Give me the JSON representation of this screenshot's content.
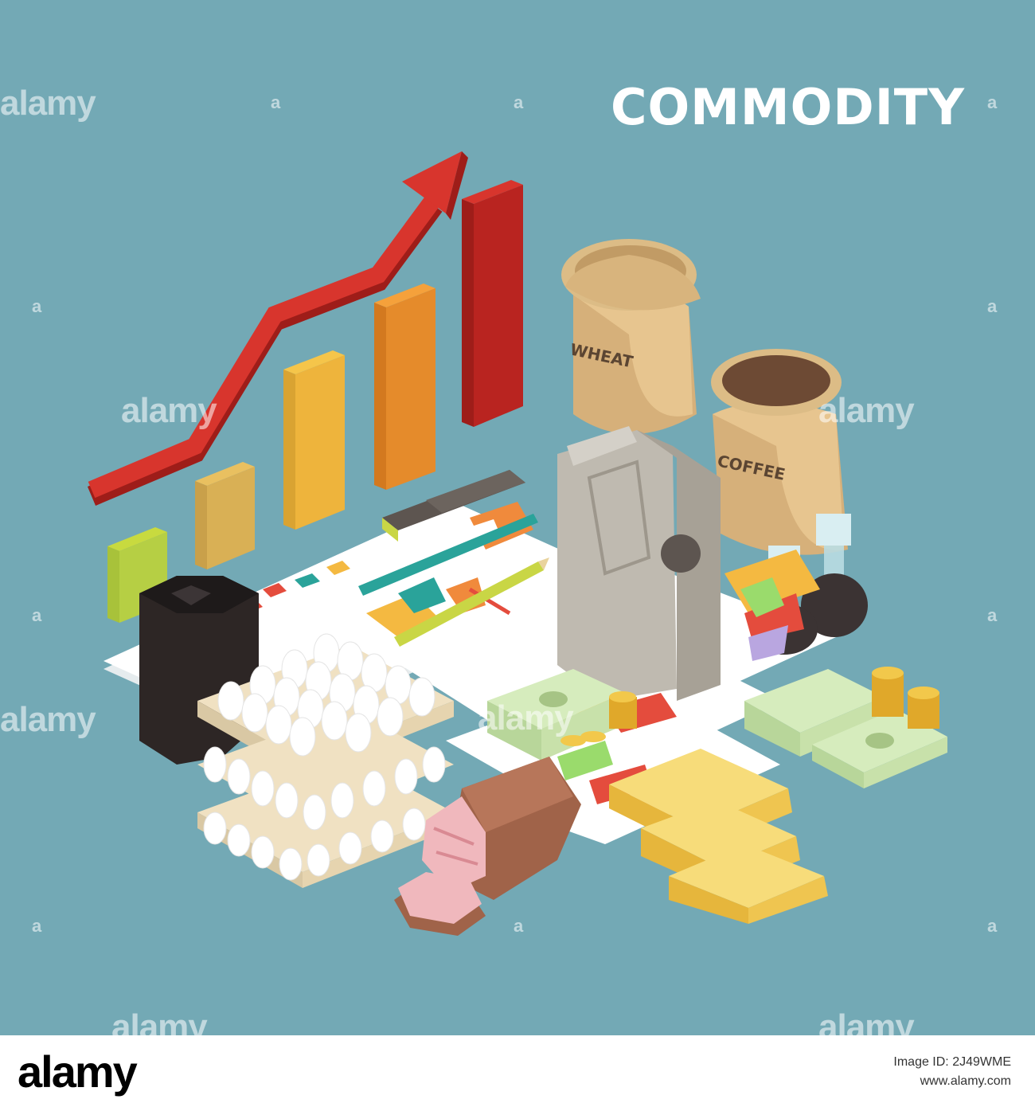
{
  "title": "COMMODITY",
  "labels": {
    "wheat": "WHEAT",
    "coffee": "COFFEE"
  },
  "watermark": {
    "text": "alamy",
    "mark": "a"
  },
  "footer": {
    "logo": "alamy",
    "image_id_label": "Image ID: 2J49WME",
    "site": "www.alamy.com"
  },
  "icons": [
    "bar-chart-icon",
    "growth-arrow-icon",
    "wheat-sack-icon",
    "coffee-sack-icon",
    "jerrycan-icon",
    "oil-flask-icon",
    "money-stack-icon",
    "gold-coin-icon",
    "gold-bar-icon",
    "egg-tray-icon",
    "meat-icon",
    "marker-pen-icon",
    "pencil-icon",
    "document-chart-icon",
    "caviar-can-icon"
  ],
  "colors": {
    "background": "#73a9b5",
    "title": "#ffffff",
    "arrow": "#c62e27",
    "gold": "#f2c84b"
  }
}
